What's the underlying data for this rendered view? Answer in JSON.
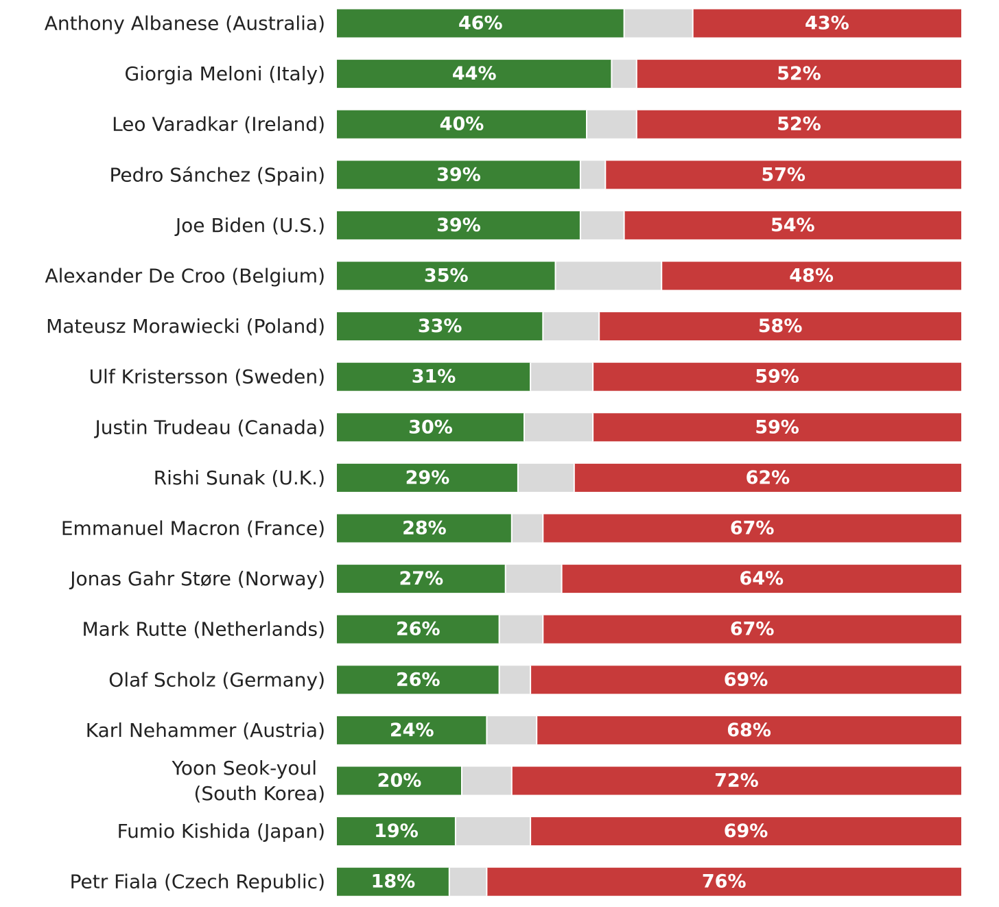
{
  "chart_data": {
    "type": "bar",
    "orientation": "horizontal",
    "stacked": true,
    "title": "",
    "xlabel": "",
    "ylabel": "",
    "xlim": [
      0,
      100
    ],
    "legend": "none",
    "grid": false,
    "categories": [
      "Anthony Albanese (Australia)",
      "Giorgia Meloni (Italy)",
      "Leo Varadkar (Ireland)",
      "Pedro Sánchez (Spain)",
      "Joe Biden (U.S.)",
      "Alexander De Croo (Belgium)",
      "Mateusz Morawiecki (Poland)",
      "Ulf Kristersson (Sweden)",
      "Justin Trudeau (Canada)",
      "Rishi Sunak (U.K.)",
      "Emmanuel Macron (France)",
      "Jonas Gahr Støre (Norway)",
      "Mark Rutte (Netherlands)",
      "Olaf Scholz (Germany)",
      "Karl Nehammer (Austria)",
      "Yoon Seok-youl\n(South Korea)",
      "Fumio Kishida (Japan)",
      "Petr Fiala (Czech Republic)"
    ],
    "series": [
      {
        "values": [
          46,
          44,
          40,
          39,
          39,
          35,
          33,
          31,
          30,
          29,
          28,
          27,
          26,
          26,
          24,
          20,
          19,
          18
        ],
        "color": "#3a8234",
        "labels": [
          "46%",
          "44%",
          "40%",
          "39%",
          "39%",
          "35%",
          "33%",
          "31%",
          "30%",
          "29%",
          "28%",
          "27%",
          "26%",
          "26%",
          "24%",
          "20%",
          "19%",
          "18%"
        ]
      },
      {
        "values": [
          11,
          4,
          8,
          4,
          7,
          17,
          9,
          10,
          11,
          9,
          5,
          9,
          7,
          5,
          8,
          8,
          12,
          6
        ],
        "color": "#d9d9d9"
      },
      {
        "values": [
          43,
          52,
          52,
          57,
          54,
          48,
          58,
          59,
          59,
          62,
          67,
          64,
          67,
          69,
          68,
          72,
          69,
          76
        ],
        "color": "#c73a3a",
        "labels": [
          "43%",
          "52%",
          "52%",
          "57%",
          "54%",
          "48%",
          "58%",
          "59%",
          "59%",
          "62%",
          "67%",
          "64%",
          "67%",
          "69%",
          "68%",
          "72%",
          "69%",
          "76%"
        ]
      }
    ]
  }
}
